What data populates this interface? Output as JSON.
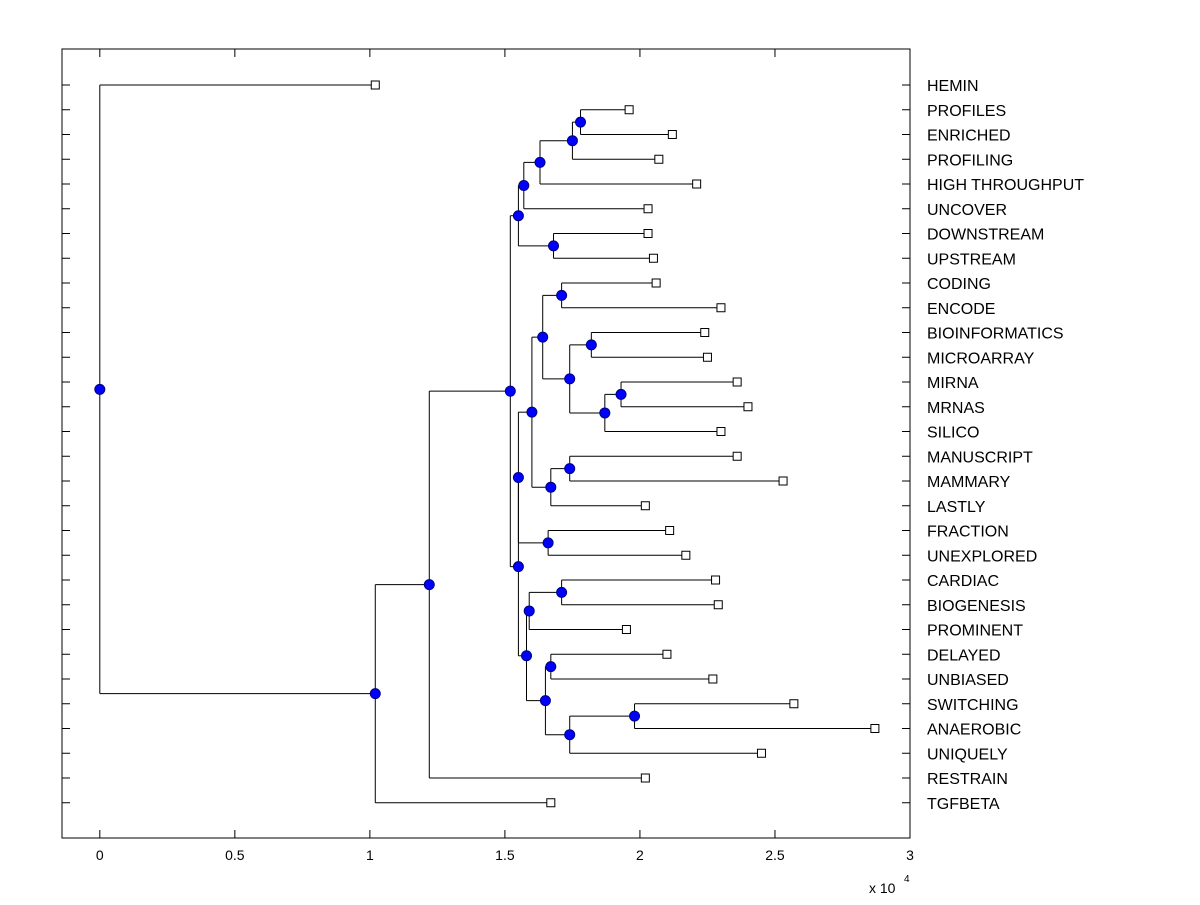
{
  "colors": {
    "background": "#ffffff",
    "axis": "#000000",
    "branch": "#000000",
    "node_fill": "#0000ff",
    "leaf_fill": "#ffffff"
  },
  "chart_data": {
    "type": "dendrogram",
    "orientation": "horizontal",
    "title": "",
    "xlabel": "",
    "ylabel": "",
    "x_exponent_label": "x 10",
    "x_exponent_power": "4",
    "x_multiplier": 10000,
    "xlim": [
      -0.14,
      3.0
    ],
    "x_ticks": [
      0,
      0.5,
      1,
      1.5,
      2,
      2.5,
      3
    ],
    "x_tick_labels": [
      "0",
      "0.5",
      "1",
      "1.5",
      "2",
      "2.5",
      "3"
    ],
    "grid": false,
    "leaves": [
      {
        "id": "HEMIN",
        "label": "HEMIN",
        "x": 1.02
      },
      {
        "id": "PROFILES",
        "label": "PROFILES",
        "x": 1.96
      },
      {
        "id": "ENRICHED",
        "label": "ENRICHED",
        "x": 2.12
      },
      {
        "id": "PROFILING",
        "label": "PROFILING",
        "x": 2.07
      },
      {
        "id": "HIGH_THROUGHPUT",
        "label": "HIGH THROUGHPUT",
        "x": 2.21
      },
      {
        "id": "UNCOVER",
        "label": "UNCOVER",
        "x": 2.03
      },
      {
        "id": "DOWNSTREAM",
        "label": "DOWNSTREAM",
        "x": 2.03
      },
      {
        "id": "UPSTREAM",
        "label": "UPSTREAM",
        "x": 2.05
      },
      {
        "id": "CODING",
        "label": "CODING",
        "x": 2.06
      },
      {
        "id": "ENCODE",
        "label": "ENCODE",
        "x": 2.3
      },
      {
        "id": "BIOINFORMATICS",
        "label": "BIOINFORMATICS",
        "x": 2.24
      },
      {
        "id": "MICROARRAY",
        "label": "MICROARRAY",
        "x": 2.25
      },
      {
        "id": "MIRNA",
        "label": "MIRNA",
        "x": 2.36
      },
      {
        "id": "MRNAS",
        "label": "MRNAS",
        "x": 2.4
      },
      {
        "id": "SILICO",
        "label": "SILICO",
        "x": 2.3
      },
      {
        "id": "MANUSCRIPT",
        "label": "MANUSCRIPT",
        "x": 2.36
      },
      {
        "id": "MAMMARY",
        "label": "MAMMARY",
        "x": 2.53
      },
      {
        "id": "LASTLY",
        "label": "LASTLY",
        "x": 2.02
      },
      {
        "id": "FRACTION",
        "label": "FRACTION",
        "x": 2.11
      },
      {
        "id": "UNEXPLORED",
        "label": "UNEXPLORED",
        "x": 2.17
      },
      {
        "id": "CARDIAC",
        "label": "CARDIAC",
        "x": 2.28
      },
      {
        "id": "BIOGENESIS",
        "label": "BIOGENESIS",
        "x": 2.29
      },
      {
        "id": "PROMINENT",
        "label": "PROMINENT",
        "x": 1.95
      },
      {
        "id": "DELAYED",
        "label": "DELAYED",
        "x": 2.1
      },
      {
        "id": "UNBIASED",
        "label": "UNBIASED",
        "x": 2.27
      },
      {
        "id": "SWITCHING",
        "label": "SWITCHING",
        "x": 2.57
      },
      {
        "id": "ANAEROBIC",
        "label": "ANAEROBIC",
        "x": 2.87
      },
      {
        "id": "UNIQUELY",
        "label": "UNIQUELY",
        "x": 2.45
      },
      {
        "id": "RESTRAIN",
        "label": "RESTRAIN",
        "x": 2.02
      },
      {
        "id": "TGFBETA",
        "label": "TGFBETA",
        "x": 1.67
      }
    ],
    "nodes": [
      {
        "id": "n_prof_enr",
        "x": 1.78,
        "children": [
          "PROFILES",
          "ENRICHED"
        ]
      },
      {
        "id": "n_prof3",
        "x": 1.75,
        "children": [
          "n_prof_enr",
          "PROFILING"
        ]
      },
      {
        "id": "n_prof4",
        "x": 1.63,
        "children": [
          "n_prof3",
          "HIGH_THROUGHPUT"
        ]
      },
      {
        "id": "n_prof5",
        "x": 1.57,
        "children": [
          "n_prof4",
          "UNCOVER"
        ]
      },
      {
        "id": "n_stream",
        "x": 1.68,
        "children": [
          "DOWNSTREAM",
          "UPSTREAM"
        ]
      },
      {
        "id": "n_top7",
        "x": 1.55,
        "children": [
          "n_prof5",
          "n_stream"
        ]
      },
      {
        "id": "n_coding",
        "x": 1.71,
        "children": [
          "CODING",
          "ENCODE"
        ]
      },
      {
        "id": "n_bioinf",
        "x": 1.82,
        "children": [
          "BIOINFORMATICS",
          "MICROARRAY"
        ]
      },
      {
        "id": "n_mirna",
        "x": 1.93,
        "children": [
          "MIRNA",
          "MRNAS"
        ]
      },
      {
        "id": "n_silico",
        "x": 1.87,
        "children": [
          "n_mirna",
          "SILICO"
        ]
      },
      {
        "id": "n_bio5",
        "x": 1.74,
        "children": [
          "n_bioinf",
          "n_silico"
        ]
      },
      {
        "id": "n_code7",
        "x": 1.64,
        "children": [
          "n_coding",
          "n_bio5"
        ]
      },
      {
        "id": "n_manu",
        "x": 1.74,
        "children": [
          "MANUSCRIPT",
          "MAMMARY"
        ]
      },
      {
        "id": "n_lastly",
        "x": 1.67,
        "children": [
          "n_manu",
          "LASTLY"
        ]
      },
      {
        "id": "n_mid10",
        "x": 1.6,
        "children": [
          "n_code7",
          "n_lastly"
        ]
      },
      {
        "id": "n_frac",
        "x": 1.66,
        "children": [
          "FRACTION",
          "UNEXPLORED"
        ]
      },
      {
        "id": "n_mid12",
        "x": 1.55,
        "children": [
          "n_mid10",
          "n_frac"
        ]
      },
      {
        "id": "n_cardiac",
        "x": 1.71,
        "children": [
          "CARDIAC",
          "BIOGENESIS"
        ]
      },
      {
        "id": "n_prominent",
        "x": 1.59,
        "children": [
          "n_cardiac",
          "PROMINENT"
        ]
      },
      {
        "id": "n_delayed",
        "x": 1.67,
        "children": [
          "DELAYED",
          "UNBIASED"
        ]
      },
      {
        "id": "n_anaer",
        "x": 1.98,
        "children": [
          "SWITCHING",
          "ANAEROBIC"
        ]
      },
      {
        "id": "n_uniq",
        "x": 1.74,
        "children": [
          "n_anaer",
          "UNIQUELY"
        ]
      },
      {
        "id": "n_del5",
        "x": 1.65,
        "children": [
          "n_delayed",
          "n_uniq"
        ]
      },
      {
        "id": "n_low8",
        "x": 1.58,
        "children": [
          "n_prominent",
          "n_del5"
        ]
      },
      {
        "id": "n_low20",
        "x": 1.55,
        "children": [
          "n_mid12",
          "n_low8"
        ]
      },
      {
        "id": "n_main27",
        "x": 1.52,
        "children": [
          "n_top7",
          "n_low20"
        ]
      },
      {
        "id": "n_restrain",
        "x": 1.22,
        "children": [
          "n_main27",
          "RESTRAIN"
        ]
      },
      {
        "id": "n_tgf",
        "x": 1.02,
        "children": [
          "n_restrain",
          "TGFBETA"
        ]
      },
      {
        "id": "n_root",
        "x": 0,
        "children": [
          "HEMIN",
          "n_tgf"
        ]
      }
    ]
  }
}
